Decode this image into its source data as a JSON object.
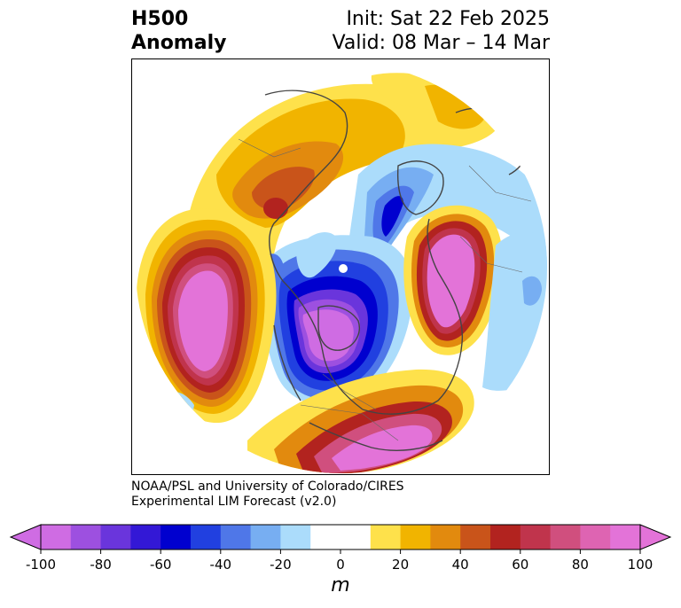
{
  "header": {
    "title_line1": "H500",
    "title_line2": "Anomaly",
    "init": "Init: Sat 22 Feb 2025",
    "valid": "Valid: 08 Mar – 14 Mar"
  },
  "credit": {
    "line1": "NOAA/PSL and University of Colorado/CIRES",
    "line2": "Experimental LIM Forecast (v2.0)"
  },
  "colorbar": {
    "unit": "m",
    "ticks": [
      "-100",
      "-80",
      "-60",
      "-40",
      "-20",
      "0",
      "20",
      "40",
      "60",
      "80",
      "100"
    ],
    "colors": [
      "#cf6ce3",
      "#9d50e0",
      "#6a35dc",
      "#3318d6",
      "#0000cf",
      "#2140e0",
      "#4f77e8",
      "#77aef2",
      "#abdcfb",
      "#ffffff",
      "#ffffff",
      "#fee14b",
      "#f1b400",
      "#e28a0e",
      "#c9541a",
      "#b2231f",
      "#c0344c",
      "#d04f7e",
      "#de64b2",
      "#e373d8"
    ],
    "over_color": "#e373d8",
    "under_color": "#cf6ce3"
  },
  "map": {
    "projection": "north-polar-stereographic",
    "features": [
      {
        "name": "north-pacific-ridge",
        "sign": "positive",
        "peak_m": 100
      },
      {
        "name": "northeast-us-ridge",
        "sign": "positive",
        "peak_m": 100
      },
      {
        "name": "europe-ridge",
        "sign": "positive",
        "peak_m": 100
      },
      {
        "name": "siberia-ridge",
        "sign": "positive",
        "peak_m": 60
      },
      {
        "name": "arctic-canada-trough",
        "sign": "negative",
        "peak_m": -100
      },
      {
        "name": "scandinavia-trough",
        "sign": "negative",
        "peak_m": -60
      },
      {
        "name": "central-atlantic-trough",
        "sign": "negative",
        "peak_m": -20
      }
    ]
  }
}
